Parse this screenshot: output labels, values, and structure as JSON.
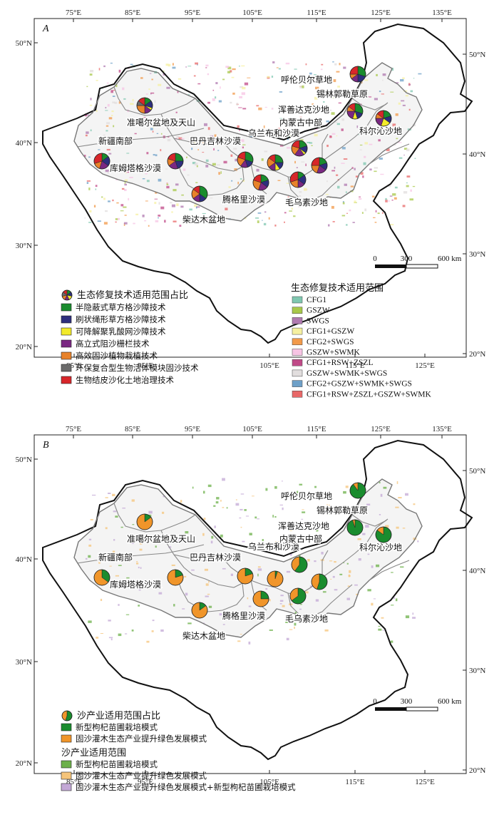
{
  "panels": [
    {
      "id": "A",
      "label": "A",
      "pie_colors": [
        "#1a8c2e",
        "#2e2f7e",
        "#f2ea2a",
        "#7a2882",
        "#e8822a",
        "#6b6b6b",
        "#d8262a"
      ],
      "regions": [
        {
          "name": "准噶尔盆地及天山",
          "pie": [
            0.15,
            0.15,
            0.05,
            0.15,
            0.25,
            0.1,
            0.15
          ]
        },
        {
          "name": "新疆南部",
          "pie": [
            0.15,
            0.2,
            0,
            0.2,
            0.15,
            0,
            0.3
          ]
        },
        {
          "name": "库姆塔格沙漠",
          "pie": [
            0.25,
            0.2,
            0,
            0.2,
            0.15,
            0,
            0.2
          ]
        },
        {
          "name": "巴丹吉林沙漠",
          "pie": [
            0.3,
            0.15,
            0,
            0.15,
            0.2,
            0,
            0.2
          ]
        },
        {
          "name": "柴达木盆地",
          "pie": [
            0.35,
            0.15,
            0,
            0.15,
            0.2,
            0,
            0.15
          ]
        },
        {
          "name": "乌兰布和沙漠",
          "pie": [
            0.25,
            0.15,
            0.1,
            0.15,
            0.2,
            0,
            0.15
          ]
        },
        {
          "name": "腾格里沙漠",
          "pie": [
            0.2,
            0.15,
            0,
            0.2,
            0.25,
            0,
            0.2
          ]
        },
        {
          "name": "毛乌素沙地",
          "pie": [
            0.15,
            0.2,
            0,
            0.15,
            0.2,
            0,
            0.3
          ]
        },
        {
          "name": "浑善达克沙地",
          "pie": [
            0.2,
            0.15,
            0.05,
            0.2,
            0.2,
            0,
            0.2
          ]
        },
        {
          "name": "内蒙古中部",
          "pie": [
            0.2,
            0.15,
            0,
            0.2,
            0.2,
            0,
            0.25
          ]
        },
        {
          "name": "科尔沁沙地",
          "pie": [
            0.2,
            0.15,
            0.2,
            0.2,
            0.1,
            0,
            0.15
          ]
        },
        {
          "name": "锡林郭勒草原",
          "pie": [
            0.3,
            0.15,
            0.1,
            0.2,
            0.1,
            0,
            0.15
          ]
        },
        {
          "name": "呼伦贝尔草地",
          "pie": [
            0.3,
            0.2,
            0,
            0.15,
            0.1,
            0,
            0.25
          ]
        }
      ],
      "pie_legend": {
        "title": "生态修复技术适用范围占比",
        "items": [
          {
            "label": "半隐蔽式草方格沙障技术",
            "color": "#1a8c2e"
          },
          {
            "label": "刷状绳形草方格沙障技术",
            "color": "#2e2f7e"
          },
          {
            "label": "可降解聚乳酸网沙障技术",
            "color": "#f2ea2a"
          },
          {
            "label": "高立式阻沙栅栏技术",
            "color": "#7a2882"
          },
          {
            "label": "高效固沙植物栽植技术",
            "color": "#e8822a"
          },
          {
            "label": "环保复合型生物活体模块固沙技术",
            "color": "#6b6b6b"
          },
          {
            "label": "生物结皮沙化土地治理技术",
            "color": "#d8262a"
          }
        ]
      },
      "range_legend": {
        "title": "生态修复技术适用范围",
        "items": [
          {
            "label": "CFG1",
            "color": "#7fc7b0"
          },
          {
            "label": "GSZW",
            "color": "#a8c84a"
          },
          {
            "label": "SWGS",
            "color": "#b07ab0"
          },
          {
            "label": "CFG1+GSZW",
            "color": "#f5f0a0"
          },
          {
            "label": "CFG2+SWGS",
            "color": "#f29a4a"
          },
          {
            "label": "GSZW+SWMK",
            "color": "#f7c4e4"
          },
          {
            "label": "CFG1+RSW+ZSZL",
            "color": "#c04a88"
          },
          {
            "label": "GSZW+SWMK+SWGS",
            "color": "#e2dede"
          },
          {
            "label": "CFG2+GSZW+SWMK+SWGS",
            "color": "#6ea0c8"
          },
          {
            "label": "CFG1+RSW+ZSZL+GSZW+SWMK",
            "color": "#e86868"
          }
        ]
      },
      "scale": {
        "labels": [
          "0",
          "300",
          "600 km"
        ]
      }
    },
    {
      "id": "B",
      "label": "B",
      "pie_colors": [
        "#1a8c2e",
        "#f0952a"
      ],
      "regions": [
        {
          "name": "准噶尔盆地及天山",
          "pie": [
            0.15,
            0.85
          ]
        },
        {
          "name": "新疆南部",
          "pie": [
            0.35,
            0.65
          ]
        },
        {
          "name": "库姆塔格沙漠",
          "pie": [
            0.2,
            0.8
          ]
        },
        {
          "name": "巴丹吉林沙漠",
          "pie": [
            0.2,
            0.8
          ]
        },
        {
          "name": "柴达木盆地",
          "pie": [
            0.15,
            0.85
          ]
        },
        {
          "name": "乌兰布和沙漠",
          "pie": [
            0.05,
            0.95
          ]
        },
        {
          "name": "腾格里沙漠",
          "pie": [
            0.25,
            0.75
          ]
        },
        {
          "name": "毛乌素沙地",
          "pie": [
            0.65,
            0.35
          ]
        },
        {
          "name": "浑善达克沙地",
          "pie": [
            0.6,
            0.4
          ]
        },
        {
          "name": "内蒙古中部",
          "pie": [
            0.55,
            0.45
          ]
        },
        {
          "name": "科尔沁沙地",
          "pie": [
            0.85,
            0.15
          ]
        },
        {
          "name": "锡林郭勒草原",
          "pie": [
            0.95,
            0.05
          ]
        },
        {
          "name": "呼伦贝尔草地",
          "pie": [
            0.9,
            0.1
          ]
        }
      ],
      "pie_legend": {
        "title": "沙产业适用范围占比",
        "items": [
          {
            "label": "新型枸杞苗圃栽培模式",
            "color": "#1a8c2e"
          },
          {
            "label": "固沙灌木生态产业提升绿色发展模式",
            "color": "#f0952a"
          }
        ]
      },
      "range_legend": {
        "title": "沙产业适用范围",
        "items": [
          {
            "label": "新型枸杞苗圃栽培模式",
            "color": "#6cb04a"
          },
          {
            "label": "固沙灌木生态产业提升绿色发展模式",
            "color": "#f5c47a"
          },
          {
            "label": "固沙灌木生态产业提升绿色发展模式+新型枸杞苗圃栽培模式",
            "color": "#c3a8d6"
          }
        ]
      },
      "scale": {
        "labels": [
          "0",
          "300",
          "600 km"
        ]
      }
    }
  ],
  "axes": {
    "top_ticks": [
      "75°E",
      "85°E",
      "95°E",
      "105°E",
      "115°E",
      "125°E",
      "135°E"
    ],
    "bottom_ticks": [
      "85°E",
      "95°E",
      "105°E",
      "115°E",
      "125°E"
    ],
    "left_ticks": [
      "50°N",
      "40°N",
      "30°N",
      "20°N"
    ],
    "right_ticks": [
      "50°N",
      "40°N",
      "30°N",
      "20°N"
    ]
  }
}
